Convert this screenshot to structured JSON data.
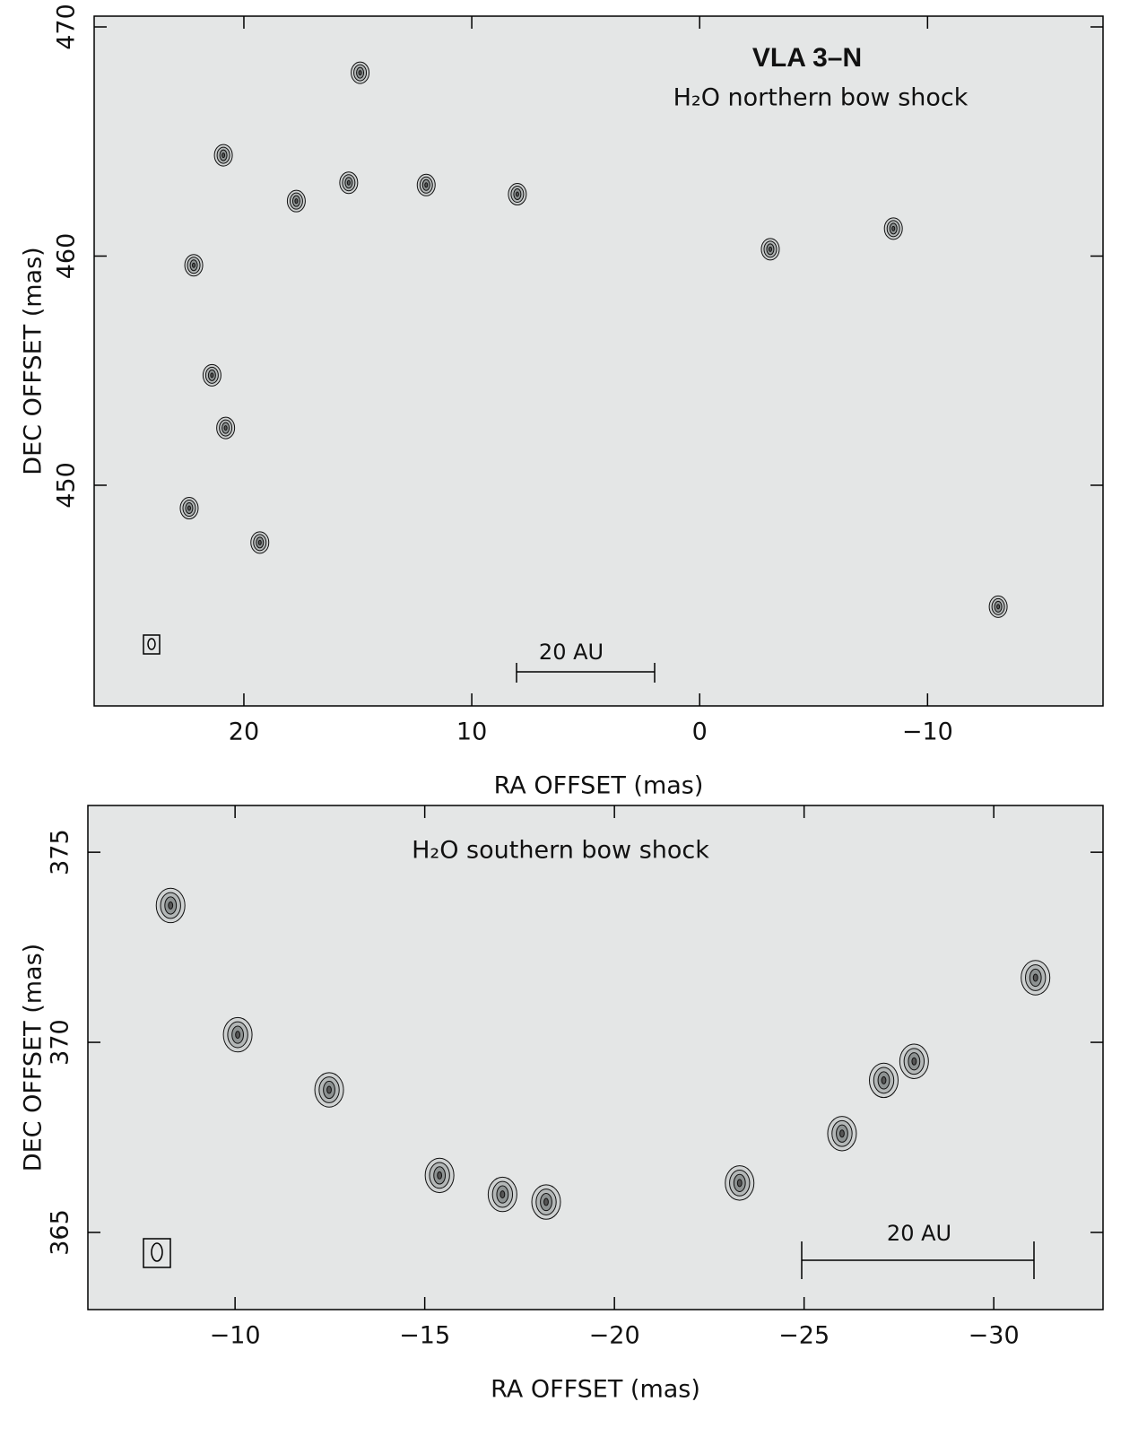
{
  "chart_data": [
    {
      "type": "scatter",
      "title": "VLA 3–N",
      "subtitle": "H₂O northern bow shock",
      "x_label": "RA OFFSET (mas)",
      "y_label": "DEC OFFSET (mas)",
      "x": [
        17.7,
        15.4,
        12.0,
        8.0,
        -3.1,
        -8.5,
        -13.1,
        22.2,
        21.4,
        20.8,
        22.4,
        19.3,
        14.9,
        20.9
      ],
      "values": [
        462.4,
        463.2,
        463.1,
        462.7,
        460.3,
        461.2,
        444.7,
        459.6,
        454.8,
        452.5,
        449.0,
        447.5,
        468.0,
        464.4
      ],
      "xlim": [
        26.57,
        -17.7
      ],
      "ylim": [
        440.37,
        470.47
      ],
      "xticks": [
        20,
        10,
        0,
        {
          "value": -10,
          "label": "−10"
        }
      ],
      "yticks": [
        450,
        460,
        470
      ],
      "scale_label": "20 AU"
    },
    {
      "type": "scatter",
      "subtitle": "H₂O southern bow shock",
      "x_label": "RA OFFSET (mas)",
      "y_label": "DEC OFFSET (mas)",
      "x": [
        -8.3,
        -10.07,
        -12.48,
        -15.39,
        -17.05,
        -18.2,
        -23.3,
        -26.0,
        -27.1,
        -27.9,
        -31.1
      ],
      "values": [
        373.6,
        370.2,
        368.75,
        366.5,
        366.0,
        365.8,
        366.3,
        367.6,
        369.0,
        369.5,
        371.7
      ],
      "xlim": [
        -6.12,
        -32.88
      ],
      "ylim": [
        362.97,
        376.23
      ],
      "xticks": [
        {
          "value": -10,
          "label": "−10"
        },
        {
          "value": -15,
          "label": "−15"
        },
        {
          "value": -20,
          "label": "−20"
        },
        {
          "value": -25,
          "label": "−25"
        },
        {
          "value": -30,
          "label": "−30"
        }
      ],
      "yticks": [
        365,
        370,
        375
      ],
      "scale_label": "20 AU"
    }
  ]
}
